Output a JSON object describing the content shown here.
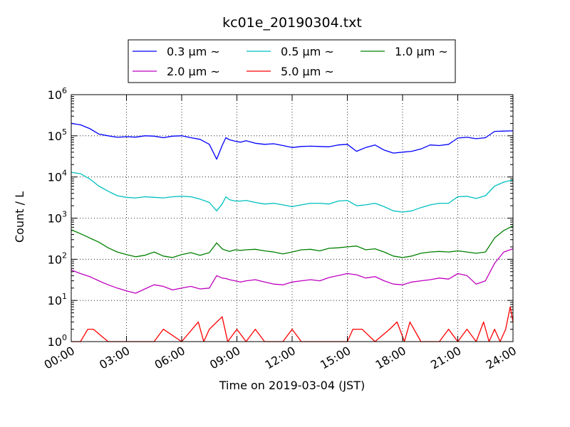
{
  "chart_data": {
    "type": "line",
    "title": "kc01e_20190304.txt",
    "xlabel": "Time on 2019-03-04 (JST)",
    "ylabel": "Count / L",
    "yscale": "log",
    "ylim": [
      1,
      1000000
    ],
    "xlim": [
      0,
      24
    ],
    "x_tick_labels": [
      "00:00",
      "03:00",
      "06:00",
      "09:00",
      "12:00",
      "15:00",
      "18:00",
      "21:00",
      "24:00"
    ],
    "y_ticks": [
      {
        "base": "10",
        "exp": "0"
      },
      {
        "base": "10",
        "exp": "1"
      },
      {
        "base": "10",
        "exp": "2"
      },
      {
        "base": "10",
        "exp": "3"
      },
      {
        "base": "10",
        "exp": "4"
      },
      {
        "base": "10",
        "exp": "5"
      },
      {
        "base": "10",
        "exp": "6"
      }
    ],
    "grid": true,
    "legend_position": "top-center, outside plot",
    "series": [
      {
        "name": "0.3 μm ~",
        "color": "#0000ff",
        "x": [
          0,
          0.5,
          1,
          1.5,
          2,
          2.5,
          3,
          3.5,
          4,
          4.5,
          5,
          5.5,
          6,
          6.5,
          7,
          7.5,
          7.9,
          8.2,
          8.4,
          8.6,
          8.9,
          9.2,
          9.5,
          10,
          10.5,
          11,
          11.5,
          12,
          12.5,
          13,
          13.5,
          14,
          14.5,
          15,
          15.5,
          16,
          16.5,
          17,
          17.5,
          18,
          18.5,
          19,
          19.5,
          20,
          20.5,
          21,
          21.5,
          22,
          22.5,
          23,
          23.5,
          24
        ],
        "values": [
          200000,
          185000,
          150000,
          110000,
          100000,
          92000,
          95000,
          93000,
          100000,
          98000,
          90000,
          98000,
          100000,
          90000,
          82000,
          62000,
          27000,
          58000,
          90000,
          80000,
          74000,
          70000,
          76000,
          66000,
          62000,
          64000,
          58000,
          52000,
          55000,
          56000,
          55000,
          54000,
          60000,
          62000,
          42000,
          52000,
          60000,
          45000,
          38000,
          40000,
          42000,
          48000,
          60000,
          58000,
          62000,
          88000,
          92000,
          85000,
          90000,
          128000,
          130000,
          132000
        ]
      },
      {
        "name": "0.5 μm ~",
        "color": "#00bfbf",
        "x": [
          0,
          0.5,
          1,
          1.5,
          2,
          2.5,
          3,
          3.5,
          4,
          4.5,
          5,
          5.5,
          6,
          6.5,
          7,
          7.5,
          7.9,
          8.2,
          8.4,
          8.6,
          8.9,
          9.2,
          9.5,
          10,
          10.5,
          11,
          11.5,
          12,
          12.5,
          13,
          13.5,
          14,
          14.5,
          15,
          15.5,
          16,
          16.5,
          17,
          17.5,
          18,
          18.5,
          19,
          19.5,
          20,
          20.5,
          21,
          21.5,
          22,
          22.5,
          23,
          23.5,
          24
        ],
        "values": [
          13000,
          12000,
          9000,
          6000,
          4500,
          3500,
          3200,
          3100,
          3300,
          3200,
          3100,
          3300,
          3400,
          3300,
          2900,
          2400,
          1500,
          2200,
          3300,
          2800,
          2600,
          2600,
          2700,
          2400,
          2200,
          2300,
          2100,
          1900,
          2100,
          2300,
          2300,
          2200,
          2600,
          2700,
          2000,
          2100,
          2300,
          1900,
          1500,
          1400,
          1500,
          1800,
          2100,
          2300,
          2300,
          3300,
          3400,
          3000,
          3500,
          6000,
          7500,
          8500
        ]
      },
      {
        "name": "1.0 μm ~",
        "color": "#008000",
        "x": [
          0,
          0.5,
          1,
          1.5,
          2,
          2.5,
          3,
          3.5,
          4,
          4.5,
          5,
          5.5,
          6,
          6.5,
          7,
          7.5,
          7.9,
          8.2,
          8.4,
          8.6,
          8.9,
          9.2,
          9.5,
          10,
          10.5,
          11,
          11.5,
          12,
          12.5,
          13,
          13.5,
          14,
          14.5,
          15,
          15.5,
          16,
          16.5,
          17,
          17.5,
          18,
          18.5,
          19,
          19.5,
          20,
          20.5,
          21,
          21.5,
          22,
          22.5,
          23,
          23.5,
          24
        ],
        "values": [
          520,
          420,
          330,
          260,
          190,
          150,
          130,
          115,
          125,
          150,
          120,
          110,
          130,
          145,
          125,
          145,
          250,
          180,
          165,
          155,
          170,
          165,
          170,
          175,
          160,
          150,
          135,
          150,
          170,
          175,
          160,
          185,
          190,
          200,
          210,
          170,
          180,
          150,
          120,
          110,
          120,
          140,
          150,
          155,
          150,
          160,
          150,
          140,
          150,
          330,
          500,
          650
        ]
      },
      {
        "name": "2.0 μm ~",
        "color": "#bf00bf",
        "x": [
          0,
          0.5,
          1,
          1.5,
          2,
          2.5,
          3,
          3.5,
          4,
          4.5,
          5,
          5.5,
          6,
          6.5,
          7,
          7.5,
          7.9,
          8.2,
          8.4,
          8.6,
          8.9,
          9.2,
          9.5,
          10,
          10.5,
          11,
          11.5,
          12,
          12.5,
          13,
          13.5,
          14,
          14.5,
          15,
          15.5,
          16,
          16.5,
          17,
          17.5,
          18,
          18.5,
          19,
          19.5,
          20,
          20.5,
          21,
          21.5,
          22,
          22.5,
          23,
          23.5,
          24
        ],
        "values": [
          55,
          45,
          38,
          30,
          24,
          20,
          17,
          15,
          19,
          24,
          22,
          18,
          20,
          22,
          19,
          20,
          40,
          35,
          34,
          32,
          30,
          28,
          30,
          32,
          28,
          25,
          24,
          28,
          30,
          32,
          30,
          36,
          40,
          45,
          42,
          35,
          38,
          30,
          25,
          24,
          28,
          30,
          32,
          35,
          33,
          45,
          40,
          25,
          30,
          80,
          150,
          180
        ]
      },
      {
        "name": "5.0 μm ~",
        "color": "#ff0000",
        "x": [
          0,
          0.5,
          0.9,
          1.2,
          2,
          3,
          4,
          4.5,
          5,
          6,
          6.9,
          7.2,
          7.5,
          8.2,
          8.5,
          9,
          9.5,
          10,
          10.5,
          11,
          11.5,
          12,
          12.5,
          13,
          14,
          15,
          15.3,
          15.8,
          16.5,
          17.3,
          17.7,
          18.1,
          18.4,
          19,
          20,
          20.5,
          21,
          21.5,
          22,
          22.4,
          22.7,
          23,
          23.3,
          23.6,
          23.85,
          24
        ],
        "values": [
          1,
          1,
          2,
          2,
          1,
          1,
          1,
          1,
          2,
          1,
          3,
          1,
          2,
          4,
          1,
          2,
          1,
          2,
          1,
          1,
          1,
          2,
          1,
          1,
          1,
          1,
          2,
          2,
          1,
          2,
          3,
          1,
          3,
          1,
          1,
          2,
          1,
          2,
          1,
          3,
          1,
          2,
          1,
          2,
          7,
          3
        ]
      }
    ]
  }
}
